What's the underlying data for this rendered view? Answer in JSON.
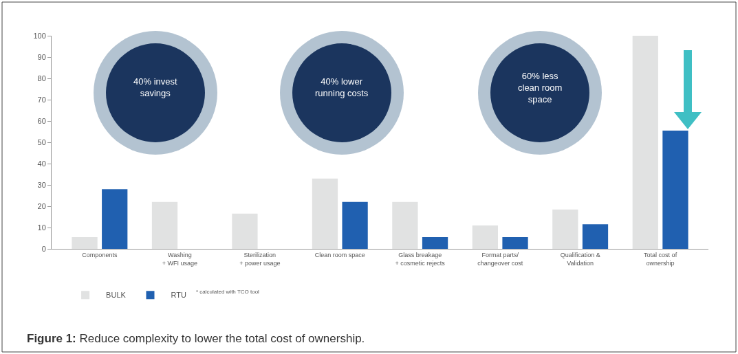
{
  "chart_data": {
    "type": "bar",
    "categories": [
      "Components",
      "Washing\n+ WFI usage",
      "Sterilization\n+ power usage",
      "Clean room space",
      "Glass breakage\n+ cosmetic rejects",
      "Format parts/\nchangeover cost",
      "Qualification &\nValidation",
      "Total cost of\nownership"
    ],
    "series": [
      {
        "name": "BULK",
        "color": "#e1e2e2",
        "values": [
          5.5,
          22,
          16.5,
          33,
          22,
          11,
          18.5,
          100
        ]
      },
      {
        "name": "RTU",
        "color": "#2060b0",
        "values": [
          28,
          null,
          null,
          22,
          5.5,
          5.5,
          11.5,
          55.5
        ]
      }
    ],
    "ylim": [
      0,
      100
    ],
    "yticks": [
      0,
      10,
      20,
      30,
      40,
      50,
      60,
      70,
      80,
      90,
      100
    ],
    "grid": false,
    "legend": "bottom left",
    "annotations": [
      "40% invest\nsavings",
      "40% lower\nrunning costs",
      "60% less\nclean room\nspace",
      "* calculated with TCO tool",
      "**Figure 1:** Reduce complexity to lower the total cost of ownership."
    ]
  }
}
